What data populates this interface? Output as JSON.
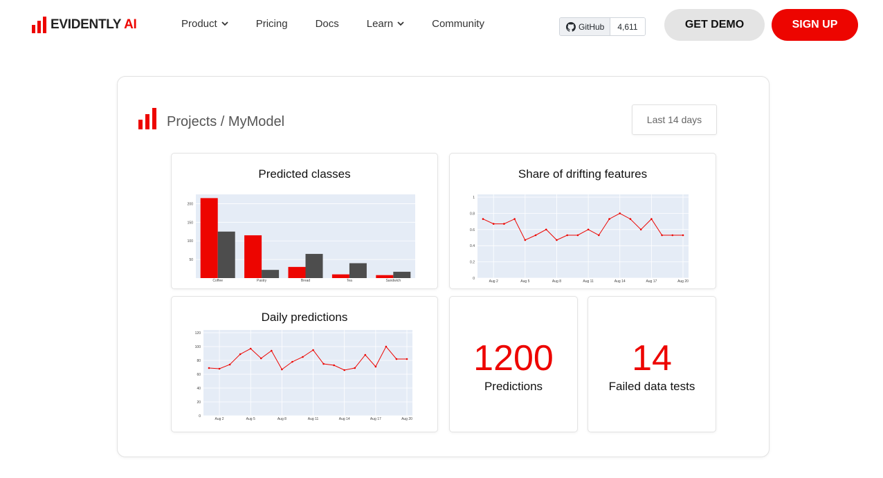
{
  "brand": {
    "name": "EVIDENTLY",
    "suffix": "AI",
    "accent": "#ed0500"
  },
  "nav": {
    "items": [
      {
        "label": "Product",
        "dropdown": true
      },
      {
        "label": "Pricing",
        "dropdown": false
      },
      {
        "label": "Docs",
        "dropdown": false
      },
      {
        "label": "Learn",
        "dropdown": true
      },
      {
        "label": "Community",
        "dropdown": false
      }
    ],
    "github": {
      "label": "GitHub",
      "count": "4,611",
      "icon": "github-icon"
    },
    "demo_label": "GET DEMO",
    "signup_label": "SIGN UP"
  },
  "dashboard": {
    "title": "Projects / MyModel",
    "range": "Last 14 days",
    "stats": [
      {
        "value": "1200",
        "label": "Predictions"
      },
      {
        "value": "14",
        "label": "Failed data tests"
      }
    ]
  },
  "chart_data": [
    {
      "type": "bar",
      "title": "Predicted classes",
      "categories": [
        "Coffee",
        "Pastry",
        "Bread",
        "Tea",
        "Sandwich"
      ],
      "series": [
        {
          "values": [
            215,
            115,
            30,
            10,
            8
          ],
          "color": "#ed0500"
        },
        {
          "values": [
            125,
            22,
            65,
            40,
            17
          ],
          "color": "#4d4d4d"
        }
      ],
      "yticks": [
        50,
        100,
        150,
        200
      ],
      "ylim": [
        0,
        225
      ],
      "grid": true
    },
    {
      "type": "line",
      "title": "Share of drifting features",
      "x": [
        "Aug 1",
        "Aug 2",
        "Aug 3",
        "Aug 4",
        "Aug 5",
        "Aug 6",
        "Aug 7",
        "Aug 8",
        "Aug 9",
        "Aug 10",
        "Aug 11",
        "Aug 12",
        "Aug 13",
        "Aug 14",
        "Aug 15",
        "Aug 16",
        "Aug 17",
        "Aug 18",
        "Aug 19",
        "Aug 20"
      ],
      "values": [
        0.73,
        0.67,
        0.67,
        0.73,
        0.47,
        0.53,
        0.6,
        0.47,
        0.53,
        0.53,
        0.6,
        0.53,
        0.73,
        0.8,
        0.73,
        0.6,
        0.73,
        0.53,
        0.53,
        0.53
      ],
      "xticks": [
        "Aug 2",
        "Aug 5",
        "Aug 8",
        "Aug 11",
        "Aug 14",
        "Aug 17",
        "Aug 20"
      ],
      "yticks": [
        "0",
        "0.2",
        "0.4",
        "0.6",
        "0.8",
        "1"
      ],
      "ylim": [
        0,
        1
      ],
      "color": "#ed0500",
      "grid": true
    },
    {
      "type": "line",
      "title": "Daily predictions",
      "x": [
        "Aug 1",
        "Aug 2",
        "Aug 3",
        "Aug 4",
        "Aug 5",
        "Aug 6",
        "Aug 7",
        "Aug 8",
        "Aug 9",
        "Aug 10",
        "Aug 11",
        "Aug 12",
        "Aug 13",
        "Aug 14",
        "Aug 15",
        "Aug 16",
        "Aug 17",
        "Aug 18",
        "Aug 19",
        "Aug 20"
      ],
      "values": [
        69,
        68,
        74,
        89,
        97,
        83,
        94,
        67,
        78,
        85,
        95,
        75,
        73,
        66,
        69,
        88,
        71,
        100,
        82,
        82
      ],
      "xticks": [
        "Aug 2",
        "Aug 5",
        "Aug 8",
        "Aug 11",
        "Aug 14",
        "Aug 17",
        "Aug 20"
      ],
      "yticks": [
        "0",
        "20",
        "40",
        "60",
        "80",
        "100",
        "120"
      ],
      "ylim": [
        0,
        120
      ],
      "color": "#ed0500",
      "grid": true
    }
  ]
}
